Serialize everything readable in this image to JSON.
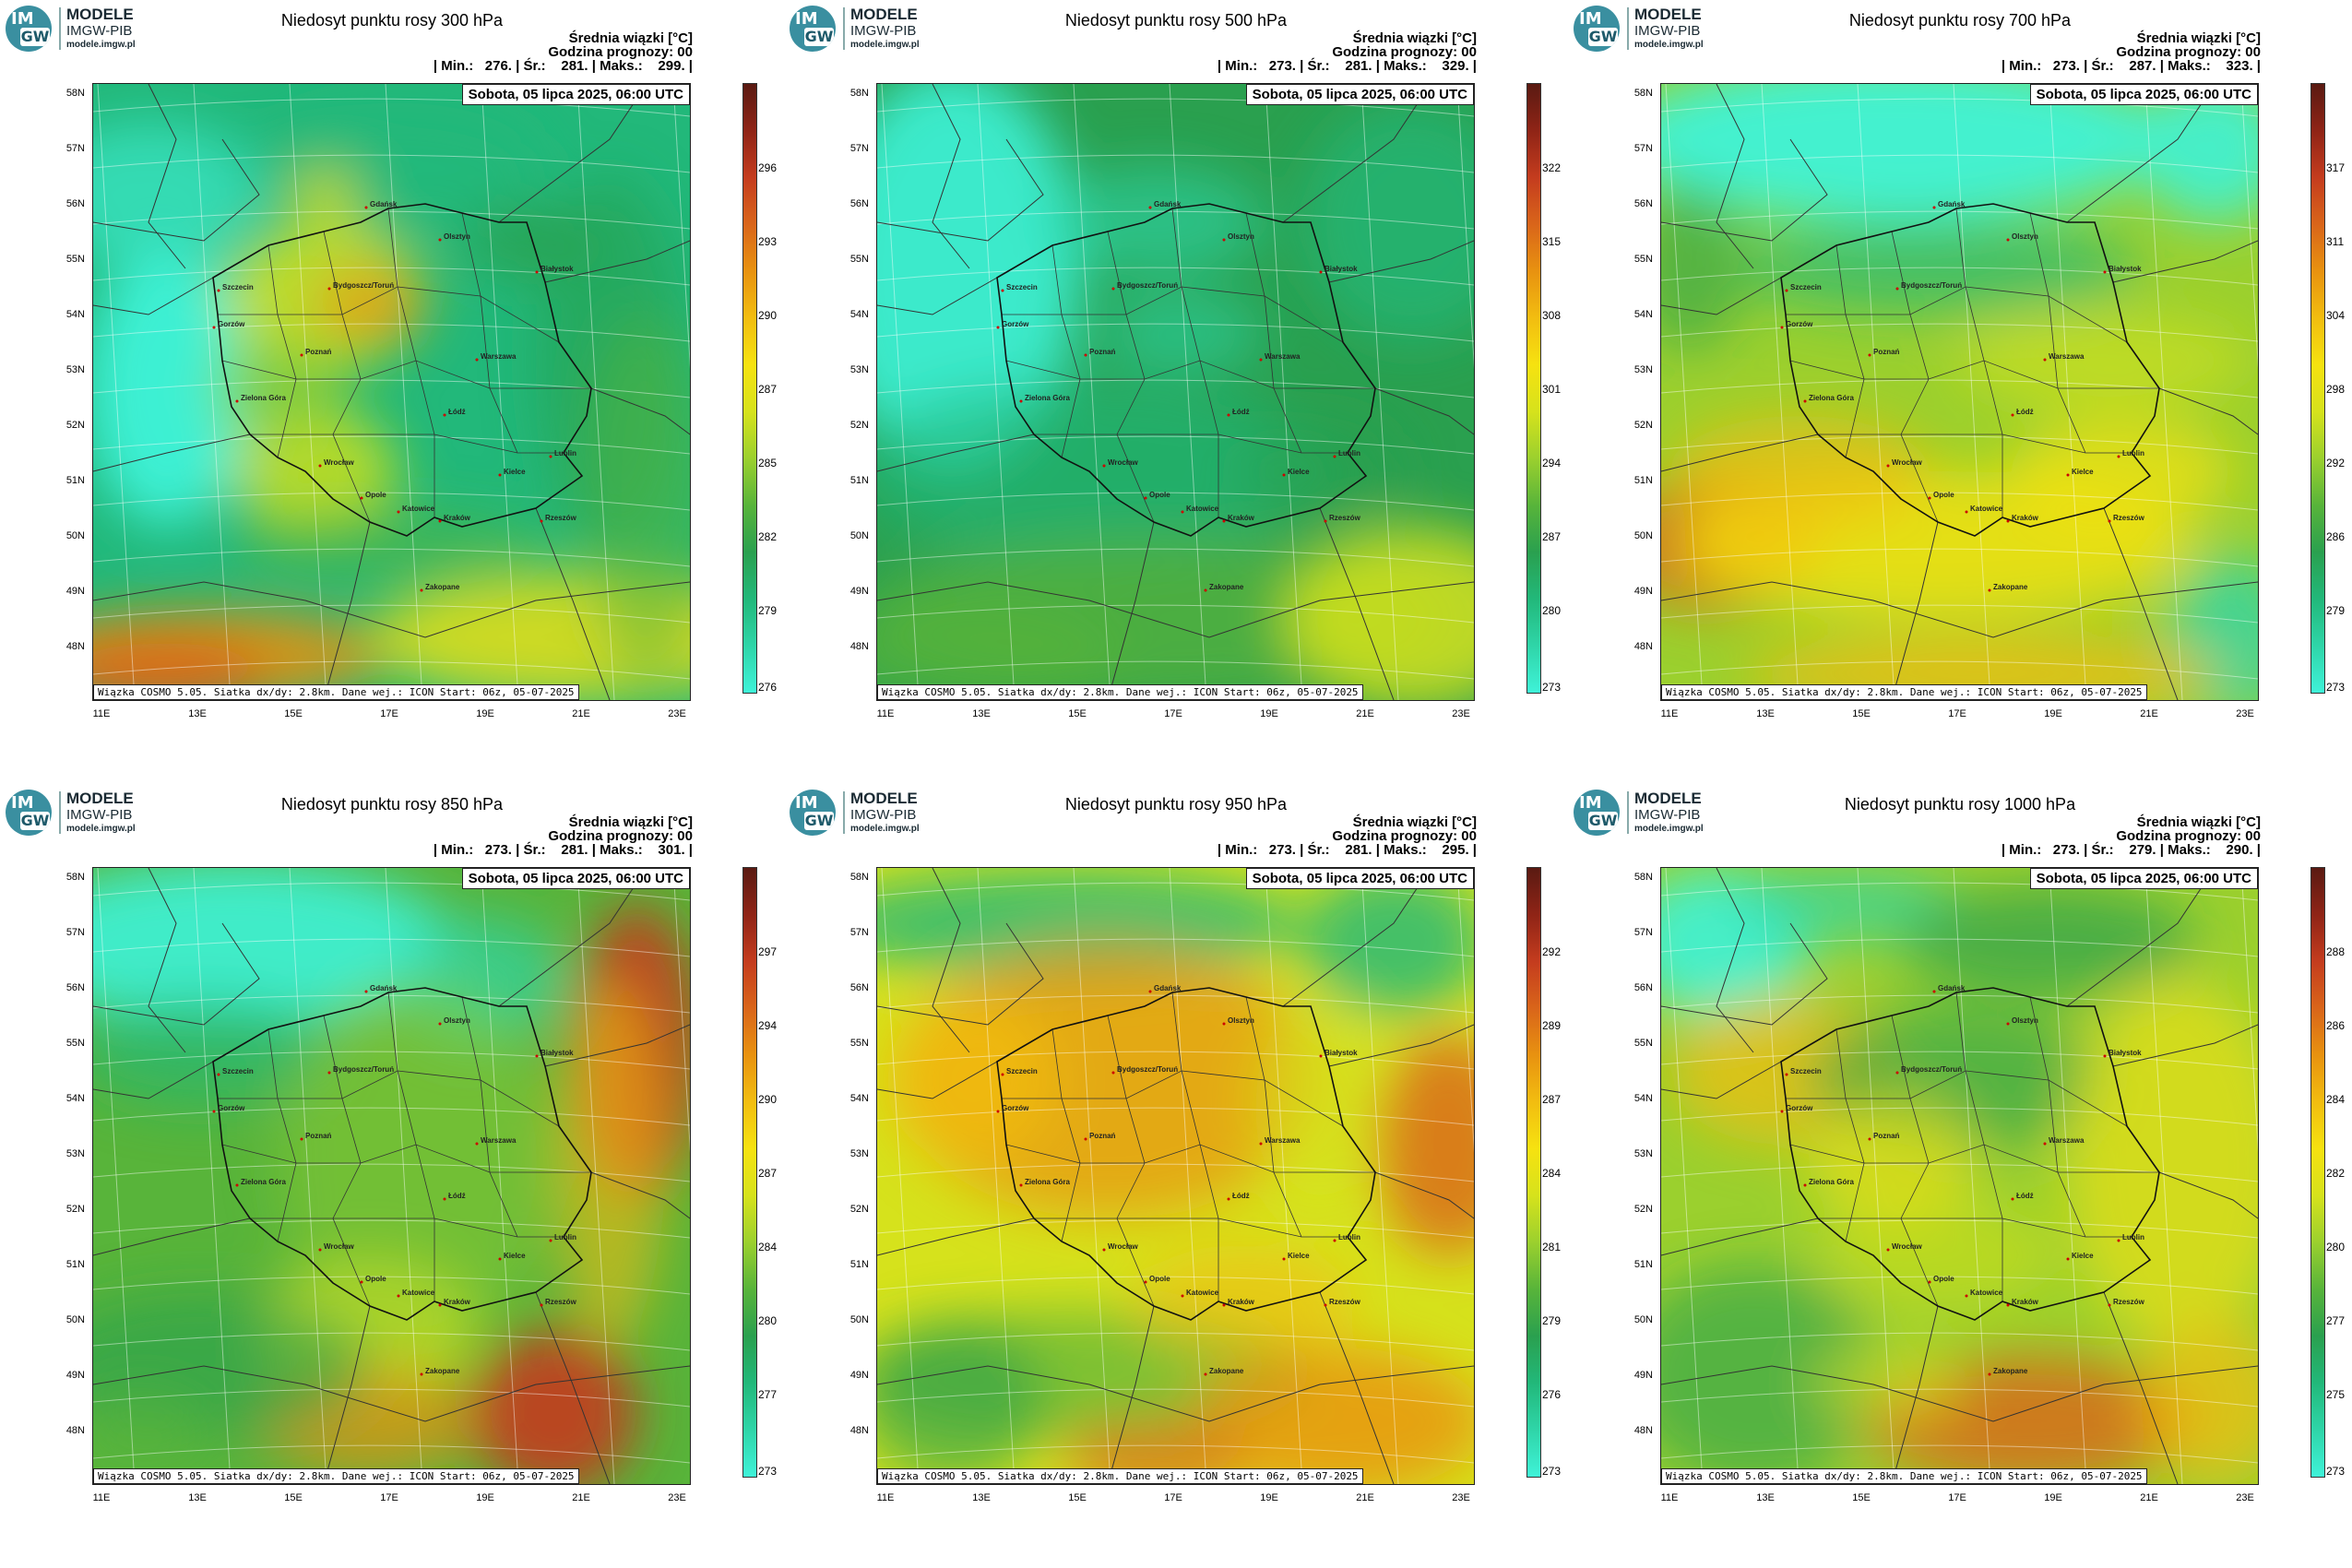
{
  "logo": {
    "name": "MODELE",
    "org": "IMGW-PIB",
    "url": "modele.imgw.pl",
    "mark_top": "IM",
    "mark_bottom": "GW"
  },
  "common": {
    "date": "Sobota, 05 lipca 2025, 06:00 UTC",
    "mean_label": "Średnia wiązki [°C]",
    "forecast_hour": "Godzina prognozy: 00",
    "footer": "Wiązka COSMO 5.05. Siatka dx/dy: 2.8km. Dane wej.: ICON Start: 06z, 05-07-2025",
    "lat_labels": [
      "58N",
      "57N",
      "56N",
      "55N",
      "54N",
      "53N",
      "52N",
      "51N",
      "50N",
      "49N",
      "48N"
    ],
    "lon_labels": [
      "11E",
      "13E",
      "15E",
      "17E",
      "19E",
      "21E",
      "23E"
    ],
    "cities": [
      "Gdańsk",
      "Olsztyn",
      "Szczecin",
      "Bydgoszcz/Toruń",
      "Białystok",
      "Gorzów",
      "Poznań",
      "Warszawa",
      "Zielona Góra",
      "Łódź",
      "Lublin",
      "Wrocław",
      "Kielce",
      "Opole",
      "Katowice",
      "Kraków",
      "Rzeszów",
      "Zakopane"
    ]
  },
  "colors": {
    "scale": [
      "#3ff2d8",
      "#2fd5a8",
      "#22b87a",
      "#2aa04f",
      "#58b43a",
      "#9bd02e",
      "#d6e21c",
      "#f6e210",
      "#f2bd10",
      "#e89210",
      "#d9651a",
      "#c43c1e",
      "#8f2416",
      "#5a1a12"
    ]
  },
  "panels": [
    {
      "title": "Niedosyt punktu rosy 300 hPa",
      "stats": "| Min.:   276. | Śr.:    281. | Maks.:    299. |",
      "cbar_ticks": [
        "296",
        "293",
        "290",
        "287",
        "285",
        "282",
        "279",
        "276"
      ],
      "style": "p300"
    },
    {
      "title": "Niedosyt punktu rosy 500 hPa",
      "stats": "| Min.:   273. | Śr.:    281. | Maks.:    329. |",
      "cbar_ticks": [
        "322",
        "315",
        "308",
        "301",
        "294",
        "287",
        "280",
        "273"
      ],
      "style": "p500"
    },
    {
      "title": "Niedosyt punktu rosy 700 hPa",
      "stats": "| Min.:   273. | Śr.:    287. | Maks.:    323. |",
      "cbar_ticks": [
        "317",
        "311",
        "304",
        "298",
        "292",
        "286",
        "279",
        "273"
      ],
      "style": "p700"
    },
    {
      "title": "Niedosyt punktu rosy 850 hPa",
      "stats": "| Min.:   273. | Śr.:    281. | Maks.:    301. |",
      "cbar_ticks": [
        "297",
        "294",
        "290",
        "287",
        "284",
        "280",
        "277",
        "273"
      ],
      "style": "p850"
    },
    {
      "title": "Niedosyt punktu rosy 950 hPa",
      "stats": "| Min.:   273. | Śr.:    281. | Maks.:    295. |",
      "cbar_ticks": [
        "292",
        "289",
        "287",
        "284",
        "281",
        "279",
        "276",
        "273"
      ],
      "style": "p950"
    },
    {
      "title": "Niedosyt punktu rosy 1000 hPa",
      "stats": "| Min.:   273. | Śr.:    279. | Maks.:    290. |",
      "cbar_ticks": [
        "288",
        "286",
        "284",
        "282",
        "280",
        "277",
        "275",
        "273"
      ],
      "style": "p1000"
    }
  ]
}
